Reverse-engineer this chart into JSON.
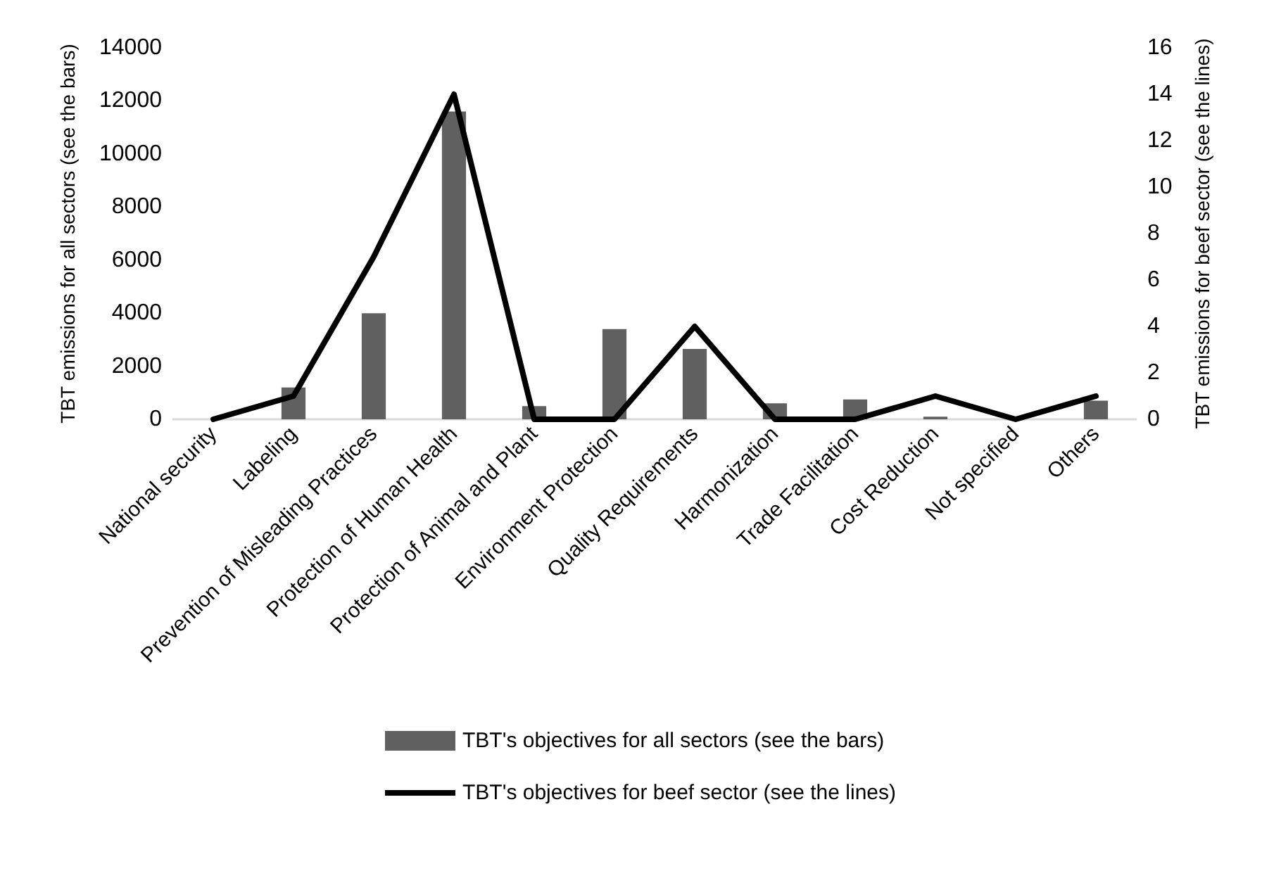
{
  "chart_data": {
    "type": "bar",
    "categories": [
      "National security",
      "Labeling",
      "Prevention of Misleading Practices",
      "Protection of Human Health",
      "Protection of Animal and Plant",
      "Environment Protection",
      "Quality Requirements",
      "Harmonization",
      "Trade Facilitation",
      "Cost Reduction",
      "Not specified",
      "Others"
    ],
    "series": [
      {
        "name": "TBT's objectives for all sectors (see the bars)",
        "color": "#606060",
        "values": [
          null,
          1200,
          4000,
          11600,
          500,
          3400,
          2650,
          600,
          750,
          100,
          0,
          700
        ]
      },
      {
        "name": "TBT's objectives for beef sector (see the lines)",
        "type": "line",
        "axis": "y2",
        "color": "#000000",
        "values": [
          0,
          1,
          7,
          14,
          0,
          0,
          4,
          0,
          0,
          1,
          0,
          1
        ]
      }
    ],
    "ylabel": "TBT emissions for all sectors (see the bars)",
    "y2label": "TBT emissions for beef sector (see the lines)",
    "ylim": [
      0,
      14000
    ],
    "yticks": [
      0,
      2000,
      4000,
      6000,
      8000,
      10000,
      12000,
      14000
    ],
    "y2lim": [
      0,
      16
    ],
    "y2ticks": [
      0,
      2,
      4,
      6,
      8,
      10,
      12,
      14,
      16
    ],
    "grid": false,
    "legend": "bottom",
    "marker": "none",
    "line_style": "solid"
  }
}
